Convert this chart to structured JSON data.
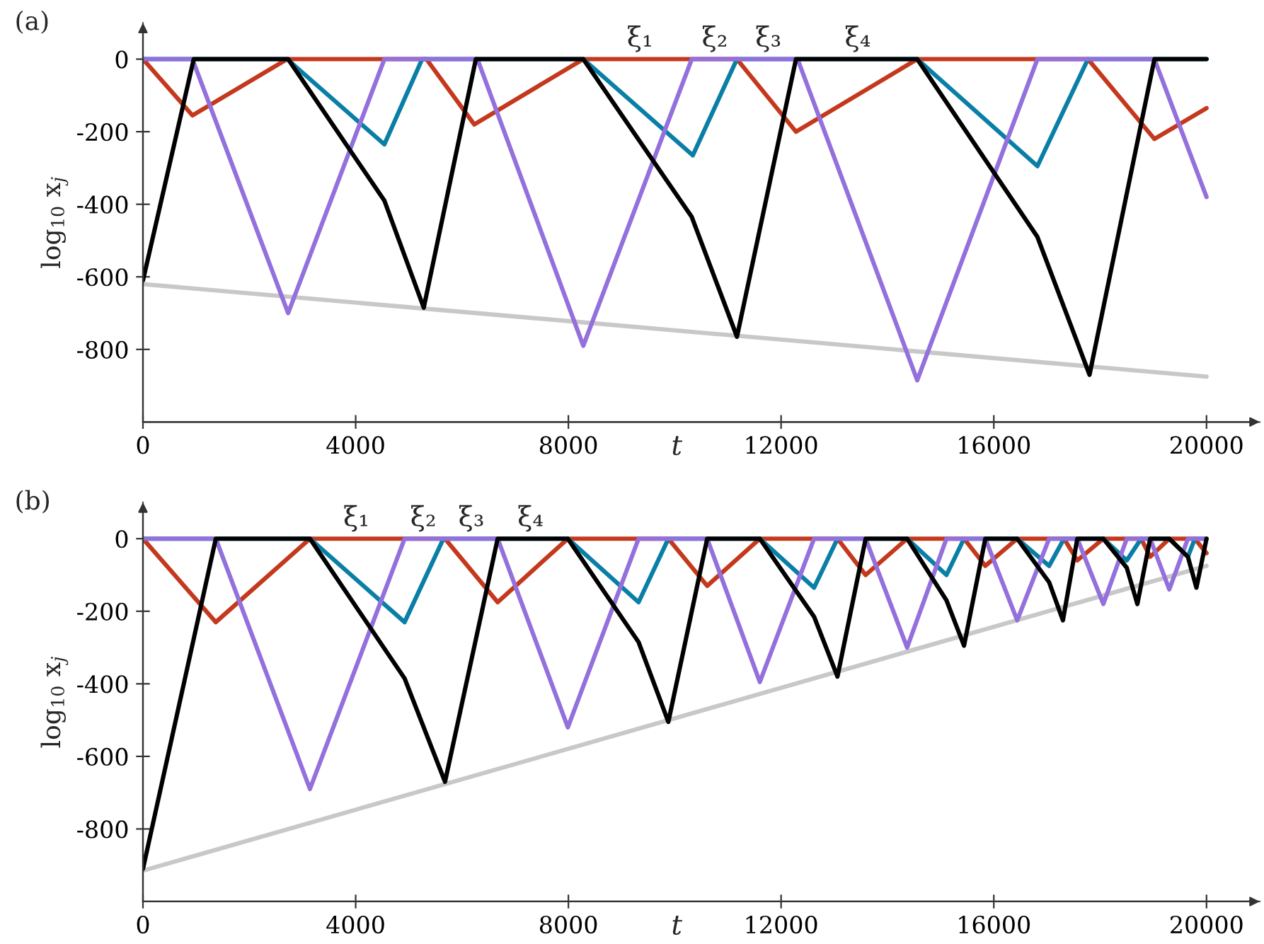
{
  "chart_data": [
    {
      "type": "line",
      "title": "(a)",
      "xlabel": "t",
      "ylabel": "log$_{10}$ x$_{j}$",
      "xlim": [
        0,
        21000
      ],
      "xticks": [
        0,
        4000,
        8000,
        12000,
        16000,
        20000
      ],
      "ylim": [
        -1000,
        100
      ],
      "yticks": [
        -800,
        -600,
        -400,
        -200,
        0
      ],
      "grid": false,
      "legend": false,
      "annotations": [
        "ξ₁",
        "ξ₂",
        "ξ₃",
        "ξ₄"
      ],
      "series": [
        {
          "color": "#c8c8c8",
          "x": [
            0,
            20000
          ],
          "values": [
            -620,
            -875
          ]
        },
        {
          "color": "#c4391d",
          "x": [
            0,
            930,
            2710,
            5330,
            6230,
            8280,
            11170,
            12280,
            14560,
            17770,
            19020,
            20000
          ],
          "values": [
            0,
            -155,
            0,
            0,
            -180,
            0,
            0,
            -200,
            0,
            0,
            -220,
            -135
          ]
        },
        {
          "color": "#0a7fa6",
          "x": [
            0,
            2710,
            4540,
            5250,
            8280,
            10340,
            11170,
            14560,
            16820,
            17770,
            20000
          ],
          "values": [
            0,
            0,
            -235,
            0,
            0,
            -265,
            0,
            0,
            -295,
            0,
            0
          ]
        },
        {
          "color": "#9370db",
          "x": [
            0,
            930,
            2730,
            4540,
            5250,
            6290,
            8280,
            10320,
            12310,
            14560,
            16820,
            19020,
            20000
          ],
          "values": [
            0,
            0,
            -700,
            0,
            0,
            0,
            -790,
            0,
            0,
            -885,
            0,
            0,
            -380
          ]
        },
        {
          "color": "#000000",
          "x": [
            0,
            955,
            2730,
            4540,
            5280,
            6260,
            8280,
            10320,
            11170,
            12280,
            14560,
            16820,
            17800,
            19020,
            20000
          ],
          "values": [
            -610,
            0,
            0,
            -390,
            -685,
            0,
            0,
            -435,
            -765,
            0,
            0,
            -490,
            -870,
            0,
            0
          ]
        }
      ]
    },
    {
      "type": "line",
      "title": "(b)",
      "xlabel": "t",
      "ylabel": "log$_{10}$ x$_{j}$",
      "xlim": [
        0,
        21000
      ],
      "xticks": [
        0,
        4000,
        8000,
        12000,
        16000,
        20000
      ],
      "ylim": [
        -1000,
        100
      ],
      "yticks": [
        -800,
        -600,
        -400,
        -200,
        0
      ],
      "grid": false,
      "legend": false,
      "annotations": [
        "ξ₁",
        "ξ₂",
        "ξ₃",
        "ξ₄"
      ],
      "series": [
        {
          "color": "#c8c8c8",
          "x": [
            0,
            20000
          ],
          "values": [
            -915,
            -75
          ]
        },
        {
          "color": "#c4391d",
          "x": [
            0,
            1370,
            3140,
            5680,
            6670,
            7990,
            9880,
            10610,
            11600,
            13060,
            13590,
            14370,
            15440,
            15840,
            16440,
            17320,
            17570,
            18060,
            18770,
            18940,
            19300,
            19780,
            20000
          ],
          "values": [
            0,
            -230,
            0,
            0,
            -175,
            0,
            0,
            -130,
            0,
            0,
            -100,
            0,
            0,
            -75,
            0,
            0,
            -60,
            0,
            0,
            -50,
            0,
            0,
            -40
          ]
        },
        {
          "color": "#0a7fa6",
          "x": [
            0,
            3140,
            4920,
            5650,
            7990,
            9320,
            9880,
            11600,
            12620,
            13060,
            14370,
            15110,
            15440,
            16440,
            17040,
            17320,
            18060,
            18500,
            18770,
            19300,
            19650,
            19780,
            20000
          ],
          "values": [
            0,
            0,
            -230,
            0,
            0,
            -175,
            0,
            0,
            -135,
            0,
            0,
            -100,
            0,
            0,
            -75,
            0,
            0,
            -60,
            0,
            0,
            -50,
            0,
            0
          ]
        },
        {
          "color": "#9370db",
          "x": [
            0,
            1370,
            3140,
            4920,
            6670,
            7990,
            9320,
            10610,
            11600,
            12620,
            13590,
            14370,
            15110,
            15840,
            16440,
            17040,
            17570,
            18060,
            18500,
            18940,
            19300,
            19650,
            20000
          ],
          "values": [
            0,
            0,
            -690,
            0,
            0,
            -520,
            0,
            0,
            -395,
            0,
            0,
            -300,
            0,
            0,
            -225,
            0,
            0,
            -180,
            0,
            0,
            -140,
            0,
            0
          ]
        },
        {
          "color": "#000000",
          "x": [
            0,
            1370,
            3140,
            4920,
            5680,
            6670,
            7990,
            9320,
            9880,
            10610,
            11600,
            12620,
            13060,
            13590,
            14370,
            15110,
            15440,
            15840,
            16440,
            17040,
            17300,
            17570,
            18060,
            18500,
            18700,
            18940,
            19300,
            19650,
            19810,
            20000
          ],
          "values": [
            -910,
            0,
            0,
            -385,
            -670,
            0,
            0,
            -285,
            -505,
            0,
            0,
            -215,
            -380,
            0,
            0,
            -170,
            -295,
            0,
            0,
            -120,
            -225,
            0,
            0,
            -80,
            -180,
            0,
            0,
            -50,
            -135,
            0
          ]
        }
      ]
    }
  ]
}
